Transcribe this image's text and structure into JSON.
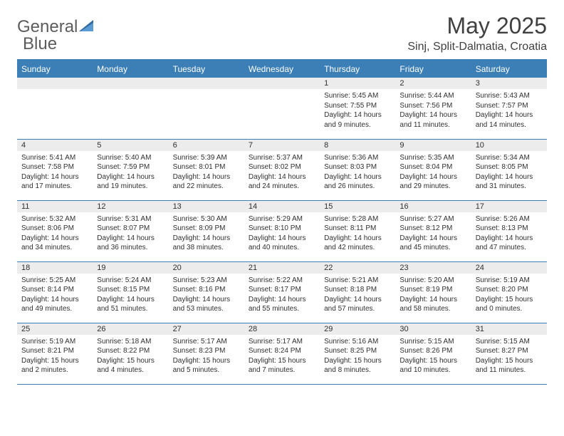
{
  "logo": {
    "text1": "General",
    "text2": "Blue"
  },
  "title": "May 2025",
  "location": "Sinj, Split-Dalmatia, Croatia",
  "colors": {
    "header_blue": "#3b7fb6",
    "daynum_bg": "#ececec",
    "text": "#303030",
    "logo_gray": "#5c5c5c"
  },
  "weekdays": [
    "Sunday",
    "Monday",
    "Tuesday",
    "Wednesday",
    "Thursday",
    "Friday",
    "Saturday"
  ],
  "weeks": [
    [
      null,
      null,
      null,
      null,
      {
        "n": "1",
        "r": "5:45 AM",
        "s": "7:55 PM",
        "d": "14 hours and 9 minutes."
      },
      {
        "n": "2",
        "r": "5:44 AM",
        "s": "7:56 PM",
        "d": "14 hours and 11 minutes."
      },
      {
        "n": "3",
        "r": "5:43 AM",
        "s": "7:57 PM",
        "d": "14 hours and 14 minutes."
      }
    ],
    [
      {
        "n": "4",
        "r": "5:41 AM",
        "s": "7:58 PM",
        "d": "14 hours and 17 minutes."
      },
      {
        "n": "5",
        "r": "5:40 AM",
        "s": "7:59 PM",
        "d": "14 hours and 19 minutes."
      },
      {
        "n": "6",
        "r": "5:39 AM",
        "s": "8:01 PM",
        "d": "14 hours and 22 minutes."
      },
      {
        "n": "7",
        "r": "5:37 AM",
        "s": "8:02 PM",
        "d": "14 hours and 24 minutes."
      },
      {
        "n": "8",
        "r": "5:36 AM",
        "s": "8:03 PM",
        "d": "14 hours and 26 minutes."
      },
      {
        "n": "9",
        "r": "5:35 AM",
        "s": "8:04 PM",
        "d": "14 hours and 29 minutes."
      },
      {
        "n": "10",
        "r": "5:34 AM",
        "s": "8:05 PM",
        "d": "14 hours and 31 minutes."
      }
    ],
    [
      {
        "n": "11",
        "r": "5:32 AM",
        "s": "8:06 PM",
        "d": "14 hours and 34 minutes."
      },
      {
        "n": "12",
        "r": "5:31 AM",
        "s": "8:07 PM",
        "d": "14 hours and 36 minutes."
      },
      {
        "n": "13",
        "r": "5:30 AM",
        "s": "8:09 PM",
        "d": "14 hours and 38 minutes."
      },
      {
        "n": "14",
        "r": "5:29 AM",
        "s": "8:10 PM",
        "d": "14 hours and 40 minutes."
      },
      {
        "n": "15",
        "r": "5:28 AM",
        "s": "8:11 PM",
        "d": "14 hours and 42 minutes."
      },
      {
        "n": "16",
        "r": "5:27 AM",
        "s": "8:12 PM",
        "d": "14 hours and 45 minutes."
      },
      {
        "n": "17",
        "r": "5:26 AM",
        "s": "8:13 PM",
        "d": "14 hours and 47 minutes."
      }
    ],
    [
      {
        "n": "18",
        "r": "5:25 AM",
        "s": "8:14 PM",
        "d": "14 hours and 49 minutes."
      },
      {
        "n": "19",
        "r": "5:24 AM",
        "s": "8:15 PM",
        "d": "14 hours and 51 minutes."
      },
      {
        "n": "20",
        "r": "5:23 AM",
        "s": "8:16 PM",
        "d": "14 hours and 53 minutes."
      },
      {
        "n": "21",
        "r": "5:22 AM",
        "s": "8:17 PM",
        "d": "14 hours and 55 minutes."
      },
      {
        "n": "22",
        "r": "5:21 AM",
        "s": "8:18 PM",
        "d": "14 hours and 57 minutes."
      },
      {
        "n": "23",
        "r": "5:20 AM",
        "s": "8:19 PM",
        "d": "14 hours and 58 minutes."
      },
      {
        "n": "24",
        "r": "5:19 AM",
        "s": "8:20 PM",
        "d": "15 hours and 0 minutes."
      }
    ],
    [
      {
        "n": "25",
        "r": "5:19 AM",
        "s": "8:21 PM",
        "d": "15 hours and 2 minutes."
      },
      {
        "n": "26",
        "r": "5:18 AM",
        "s": "8:22 PM",
        "d": "15 hours and 4 minutes."
      },
      {
        "n": "27",
        "r": "5:17 AM",
        "s": "8:23 PM",
        "d": "15 hours and 5 minutes."
      },
      {
        "n": "28",
        "r": "5:17 AM",
        "s": "8:24 PM",
        "d": "15 hours and 7 minutes."
      },
      {
        "n": "29",
        "r": "5:16 AM",
        "s": "8:25 PM",
        "d": "15 hours and 8 minutes."
      },
      {
        "n": "30",
        "r": "5:15 AM",
        "s": "8:26 PM",
        "d": "15 hours and 10 minutes."
      },
      {
        "n": "31",
        "r": "5:15 AM",
        "s": "8:27 PM",
        "d": "15 hours and 11 minutes."
      }
    ]
  ],
  "labels": {
    "sunrise": "Sunrise:",
    "sunset": "Sunset:",
    "daylight": "Daylight:"
  }
}
